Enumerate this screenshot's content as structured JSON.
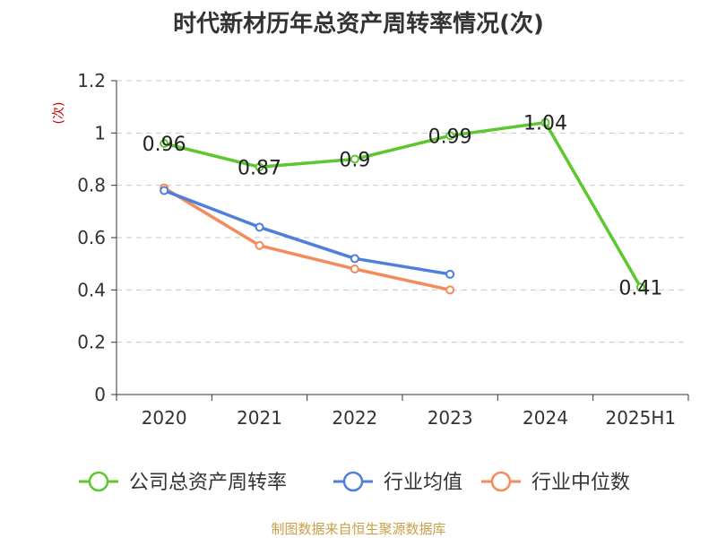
{
  "chart_data": {
    "type": "line",
    "title": "时代新材历年总资产周转率情况(次)",
    "ylabel": "(次)",
    "xlabel": "",
    "categories": [
      "2020",
      "2021",
      "2022",
      "2023",
      "2024",
      "2025H1"
    ],
    "ylim": [
      0,
      1.2
    ],
    "yticks": [
      0,
      0.2,
      0.4,
      0.6,
      0.8,
      1,
      1.2
    ],
    "ytick_labels": [
      "0",
      "0.2",
      "0.4",
      "0.6",
      "0.8",
      "1",
      "1.2"
    ],
    "grid": "horizontal-dashed",
    "legend_position": "bottom",
    "series": [
      {
        "name": "公司总资产周转率",
        "color": "#5cc72e",
        "values": [
          0.96,
          0.87,
          0.9,
          0.99,
          1.04,
          0.41
        ],
        "data_labels": [
          "0.96",
          "0.87",
          "0.9",
          "0.99",
          "1.04",
          "0.41"
        ],
        "show_labels": true
      },
      {
        "name": "行业均值",
        "color": "#4f7fdc",
        "values": [
          0.78,
          0.64,
          0.52,
          0.46,
          null,
          null
        ],
        "show_labels": false
      },
      {
        "name": "行业中位数",
        "color": "#f58b5b",
        "values": [
          0.79,
          0.57,
          0.48,
          0.4,
          null,
          null
        ],
        "show_labels": false
      }
    ],
    "source": "制图数据来自恒生聚源数据库"
  }
}
